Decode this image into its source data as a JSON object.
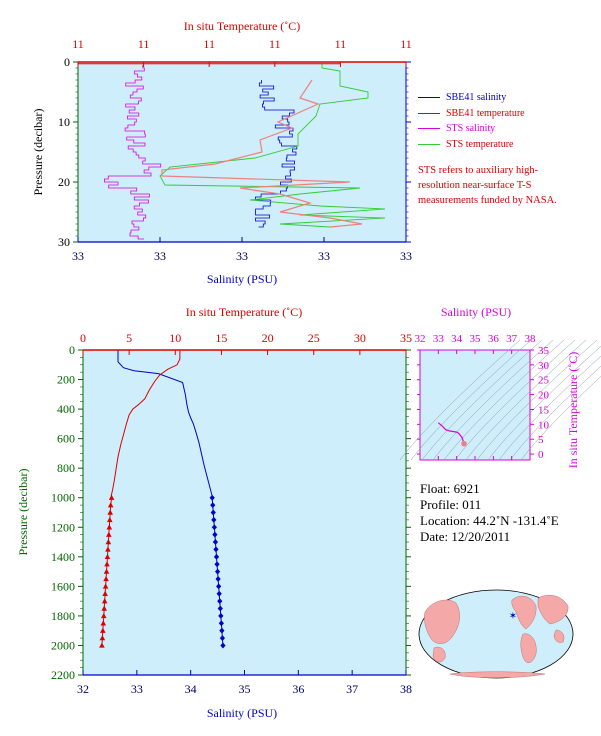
{
  "chart_data": [
    {
      "type": "line",
      "top_axis_label": "In situ Temperature (˚C)",
      "bottom_axis_label": "Salinity (PSU)",
      "ylabel": "Pressure (decibar)",
      "top_tick_labels": [
        "11",
        "11",
        "11",
        "11",
        "11",
        "11"
      ],
      "bottom_tick_labels": [
        "33",
        "33",
        "33",
        "33",
        "33"
      ],
      "y_ticks": [
        0,
        10,
        20,
        30
      ],
      "ylim": [
        0,
        30
      ],
      "legend_position": "right",
      "legend": [
        {
          "name": "SBE41 salinity",
          "color": "#0000cc"
        },
        {
          "name": "SBE41 temperature",
          "color": "#dd0000"
        },
        {
          "name": "STS salinity",
          "color": "#dd00dd"
        },
        {
          "name": "STS temperature",
          "color": "#33cc33"
        }
      ],
      "note": "STS refers to auxiliary high-resolution near-surface T-S measurements funded by NASA."
    },
    {
      "type": "line",
      "top_axis_label": "In situ Temperature (˚C)",
      "bottom_axis_label": "Salinity (PSU)",
      "ylabel": "Pressure (decibar)",
      "xlim_salinity": [
        32,
        38
      ],
      "xlim_temperature": [
        0,
        35
      ],
      "ylim": [
        0,
        2200
      ],
      "salinity_ticks": [
        32,
        33,
        34,
        35,
        36,
        37,
        38
      ],
      "temperature_ticks": [
        0,
        5,
        10,
        15,
        20,
        25,
        30,
        35
      ],
      "pressure_ticks": [
        0,
        200,
        400,
        600,
        800,
        1000,
        1200,
        1400,
        1600,
        1800,
        2000,
        2200
      ],
      "series": [
        {
          "name": "salinity",
          "color": "#0000cc",
          "x": [
            32.65,
            32.65,
            32.75,
            32.95,
            33.4,
            33.85,
            33.9,
            33.93,
            33.96,
            34.0,
            34.05,
            34.1,
            34.15,
            34.2,
            34.25,
            34.3,
            34.35,
            34.4
          ],
          "y": [
            0,
            80,
            120,
            140,
            160,
            220,
            300,
            370,
            420,
            460,
            500,
            560,
            620,
            700,
            780,
            850,
            920,
            990
          ]
        },
        {
          "name": "temperature",
          "color": "#dd0000",
          "x": [
            10.5,
            10.5,
            10.2,
            9.2,
            8.3,
            7.8,
            7.2,
            6.7,
            6.0,
            5.4,
            5.0,
            4.7,
            4.4,
            4.1,
            3.8,
            3.6,
            3.4,
            3.2,
            3.05
          ],
          "y": [
            0,
            60,
            100,
            130,
            170,
            210,
            270,
            330,
            370,
            400,
            440,
            500,
            570,
            640,
            720,
            800,
            880,
            950,
            990
          ]
        }
      ],
      "point_series": [
        {
          "name": "salinity points",
          "color": "#0000cc",
          "marker": "diamond",
          "x": [
            34.4,
            34.41,
            34.42,
            34.43,
            34.44,
            34.45,
            34.46,
            34.47,
            34.48,
            34.49,
            34.5,
            34.51,
            34.52,
            34.53,
            34.54,
            34.55,
            34.56,
            34.57,
            34.58,
            34.59,
            34.6
          ],
          "y": [
            1000,
            1050,
            1100,
            1150,
            1200,
            1250,
            1300,
            1350,
            1400,
            1450,
            1500,
            1550,
            1600,
            1650,
            1700,
            1750,
            1800,
            1850,
            1900,
            1950,
            2000
          ]
        },
        {
          "name": "temperature points",
          "color": "#dd0000",
          "marker": "triangle",
          "x": [
            3.1,
            3.0,
            2.95,
            2.9,
            2.85,
            2.8,
            2.75,
            2.7,
            2.65,
            2.6,
            2.55,
            2.5,
            2.45,
            2.4,
            2.35,
            2.3,
            2.25,
            2.2,
            2.15,
            2.1,
            2.05
          ],
          "y": [
            1000,
            1050,
            1100,
            1150,
            1200,
            1250,
            1300,
            1350,
            1400,
            1450,
            1500,
            1550,
            1600,
            1650,
            1700,
            1750,
            1800,
            1850,
            1900,
            1950,
            2000
          ]
        }
      ]
    },
    {
      "type": "line",
      "top_axis_label": "Salinity (PSU)",
      "right_axis_label": "In situ Temperature (˚C)",
      "salinity_ticks": [
        32,
        33,
        34,
        35,
        36,
        37,
        38
      ],
      "temperature_ticks": [
        0,
        5,
        10,
        15,
        20,
        25,
        30,
        35
      ],
      "xlim": [
        32,
        38
      ],
      "ylim": [
        -2,
        35
      ],
      "series": [
        {
          "name": "T-S",
          "color": "#dd00dd",
          "x": [
            33.0,
            33.2,
            33.4,
            33.6,
            33.8,
            34.0,
            34.1,
            34.2,
            34.3,
            34.35,
            34.4
          ],
          "y": [
            10.5,
            9.5,
            8.2,
            7.8,
            7.6,
            7.4,
            7.0,
            6.3,
            5.5,
            4.5,
            3.5
          ]
        }
      ]
    }
  ],
  "float_info": {
    "float": "Float: 6921",
    "profile": "Profile: 011",
    "location": "Location: 44.2˚N -131.4˚E",
    "date": "Date: 12/20/2011"
  },
  "colors": {
    "plot_bg": "#cdeefa",
    "salinity": "#0000cc",
    "temperature": "#dd0000",
    "sts_salinity": "#dd00dd",
    "sts_temperature": "#33cc33",
    "tick_text": "#000066",
    "pressure_axis": "#006600",
    "map_land": "#f4a8a8",
    "map_ocean": "#cdeefa"
  }
}
